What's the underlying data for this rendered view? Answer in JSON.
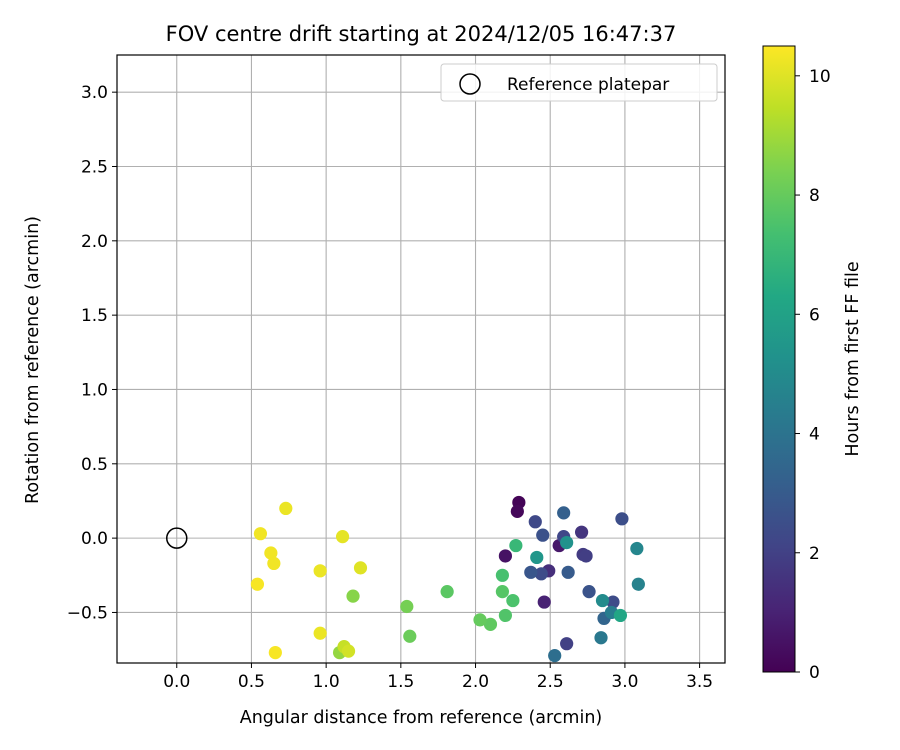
{
  "chart_data": {
    "type": "scatter",
    "title": "FOV centre drift starting at 2024/12/05 16:47:37",
    "xlabel": "Angular distance from reference (arcmin)",
    "ylabel": "Rotation from reference (arcmin)",
    "xlim": [
      -0.4,
      3.67
    ],
    "ylim": [
      -0.84,
      3.25
    ],
    "xticks": [
      "0.0",
      "0.5",
      "1.0",
      "1.5",
      "2.0",
      "2.5",
      "3.0",
      "3.5"
    ],
    "yticks": [
      "−0.5",
      "0.0",
      "0.5",
      "1.0",
      "1.5",
      "2.0",
      "2.5",
      "3.0"
    ],
    "grid": true,
    "legend": {
      "position": "top-right",
      "entries": [
        {
          "label": "Reference platepar",
          "marker": "open-circle"
        }
      ]
    },
    "reference_point": {
      "x": 0.0,
      "y": 0.0
    },
    "colorbar": {
      "label": "Hours from first FF file",
      "colormap": "viridis",
      "range": [
        0,
        10.5
      ],
      "ticks": [
        "0",
        "2",
        "4",
        "6",
        "8",
        "10"
      ]
    },
    "points": [
      {
        "x": 2.29,
        "y": 0.24,
        "c": 0.1
      },
      {
        "x": 2.28,
        "y": 0.18,
        "c": 0.2
      },
      {
        "x": 2.2,
        "y": -0.12,
        "c": 0.5
      },
      {
        "x": 2.56,
        "y": -0.05,
        "c": 0.7
      },
      {
        "x": 2.46,
        "y": -0.43,
        "c": 1.0
      },
      {
        "x": 2.49,
        "y": -0.22,
        "c": 1.4
      },
      {
        "x": 2.71,
        "y": 0.04,
        "c": 1.6
      },
      {
        "x": 2.72,
        "y": -0.11,
        "c": 1.8
      },
      {
        "x": 2.74,
        "y": -0.12,
        "c": 1.9
      },
      {
        "x": 2.61,
        "y": -0.71,
        "c": 2.0
      },
      {
        "x": 2.59,
        "y": 0.01,
        "c": 2.2
      },
      {
        "x": 2.4,
        "y": 0.11,
        "c": 2.3
      },
      {
        "x": 2.44,
        "y": -0.24,
        "c": 2.4
      },
      {
        "x": 2.92,
        "y": -0.43,
        "c": 2.4
      },
      {
        "x": 2.98,
        "y": 0.13,
        "c": 2.5
      },
      {
        "x": 2.45,
        "y": 0.02,
        "c": 2.6
      },
      {
        "x": 2.76,
        "y": -0.36,
        "c": 2.7
      },
      {
        "x": 2.37,
        "y": -0.23,
        "c": 2.8
      },
      {
        "x": 2.62,
        "y": -0.23,
        "c": 3.0
      },
      {
        "x": 2.59,
        "y": 0.17,
        "c": 3.2
      },
      {
        "x": 2.86,
        "y": -0.54,
        "c": 3.4
      },
      {
        "x": 2.53,
        "y": -0.79,
        "c": 3.8
      },
      {
        "x": 2.84,
        "y": -0.67,
        "c": 4.2
      },
      {
        "x": 2.91,
        "y": -0.5,
        "c": 4.4
      },
      {
        "x": 3.09,
        "y": -0.31,
        "c": 4.6
      },
      {
        "x": 3.08,
        "y": -0.07,
        "c": 4.8
      },
      {
        "x": 2.85,
        "y": -0.42,
        "c": 5.0
      },
      {
        "x": 2.61,
        "y": -0.03,
        "c": 5.3
      },
      {
        "x": 2.41,
        "y": -0.13,
        "c": 5.5
      },
      {
        "x": 2.97,
        "y": -0.52,
        "c": 6.2
      },
      {
        "x": 2.27,
        "y": -0.05,
        "c": 7.0
      },
      {
        "x": 2.18,
        "y": -0.25,
        "c": 7.4
      },
      {
        "x": 2.25,
        "y": -0.42,
        "c": 7.5
      },
      {
        "x": 2.2,
        "y": -0.52,
        "c": 7.6
      },
      {
        "x": 2.18,
        "y": -0.36,
        "c": 7.7
      },
      {
        "x": 1.81,
        "y": -0.36,
        "c": 7.8
      },
      {
        "x": 2.1,
        "y": -0.58,
        "c": 7.9
      },
      {
        "x": 2.03,
        "y": -0.55,
        "c": 8.0
      },
      {
        "x": 1.56,
        "y": -0.66,
        "c": 8.1
      },
      {
        "x": 1.54,
        "y": -0.46,
        "c": 8.3
      },
      {
        "x": 1.18,
        "y": -0.39,
        "c": 8.6
      },
      {
        "x": 1.09,
        "y": -0.77,
        "c": 8.8
      },
      {
        "x": 1.12,
        "y": -0.73,
        "c": 9.6
      },
      {
        "x": 1.15,
        "y": -0.76,
        "c": 9.8
      },
      {
        "x": 1.23,
        "y": -0.2,
        "c": 10.0
      },
      {
        "x": 1.11,
        "y": 0.01,
        "c": 10.1
      },
      {
        "x": 0.96,
        "y": -0.22,
        "c": 10.2
      },
      {
        "x": 0.96,
        "y": -0.64,
        "c": 10.2
      },
      {
        "x": 0.73,
        "y": 0.2,
        "c": 10.2
      },
      {
        "x": 0.56,
        "y": 0.03,
        "c": 10.3
      },
      {
        "x": 0.63,
        "y": -0.1,
        "c": 10.3
      },
      {
        "x": 0.65,
        "y": -0.17,
        "c": 10.3
      },
      {
        "x": 0.54,
        "y": -0.31,
        "c": 10.4
      },
      {
        "x": 0.66,
        "y": -0.77,
        "c": 10.4
      }
    ]
  }
}
